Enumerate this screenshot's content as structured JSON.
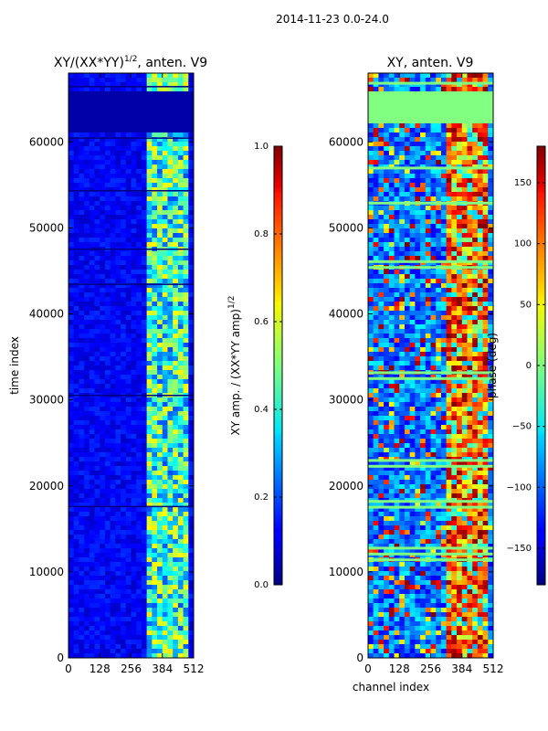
{
  "figure": {
    "suptitle": "2014-11-23 0.0-24.0"
  },
  "chart_data": [
    {
      "type": "heatmap",
      "id": "left",
      "title_main": "XY/(XX*YY)",
      "title_sup": "1/2",
      "title_tail": ", anten. V9",
      "xlabel": "",
      "ylabel": "time index",
      "xticks": [
        0,
        128,
        256,
        384,
        512
      ],
      "yticks": [
        0,
        10000,
        20000,
        30000,
        40000,
        50000,
        60000
      ],
      "xlim": [
        0,
        512
      ],
      "ylim": [
        0,
        68000
      ],
      "colormap": "jet",
      "colorbar": {
        "label_main": "XY amp. / (XX*YY amp)",
        "label_sup": "1/2",
        "ticks": [
          0.0,
          0.2,
          0.4,
          0.6,
          0.8,
          1.0
        ],
        "tick_labels": [
          "0.0",
          "0.2",
          "0.4",
          "0.6",
          "0.8",
          "1.0"
        ],
        "range": [
          0.0,
          1.0
        ]
      }
    },
    {
      "type": "heatmap",
      "id": "right",
      "title_main": "XY, anten. V9",
      "xlabel": "channel index",
      "ylabel": "",
      "xticks": [
        0,
        128,
        256,
        384,
        512
      ],
      "yticks": [
        0,
        10000,
        20000,
        30000,
        40000,
        50000,
        60000
      ],
      "xlim": [
        0,
        512
      ],
      "ylim": [
        0,
        68000
      ],
      "colormap": "jet",
      "colorbar": {
        "label_main": "phase (deg)",
        "ticks": [
          -150,
          -100,
          -50,
          0,
          50,
          100,
          150
        ],
        "tick_labels": [
          "−150",
          "−100",
          "−50",
          "0",
          "50",
          "100",
          "150"
        ],
        "range": [
          -180,
          180
        ]
      }
    }
  ],
  "colors": {
    "jet_low": "#00007f",
    "jet_mid": "#7fff7f",
    "jet_high": "#7f0000"
  }
}
